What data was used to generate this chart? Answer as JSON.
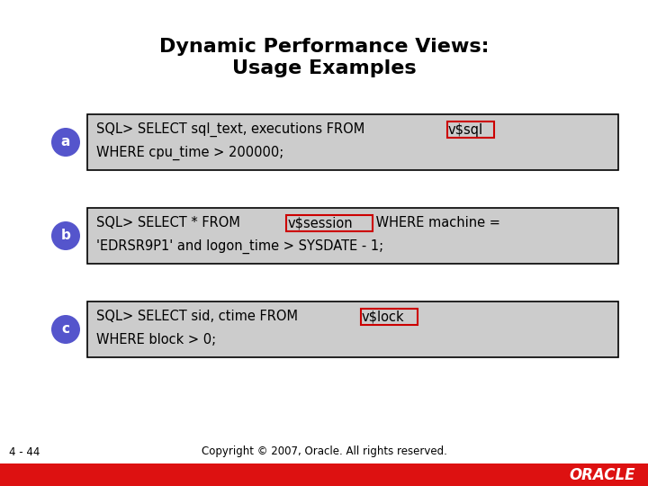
{
  "title_line1": "Dynamic Performance Views:",
  "title_line2": "Usage Examples",
  "title_fontsize": 16,
  "background_color": "#ffffff",
  "box_bg_color": "#cccccc",
  "box_border_color": "#000000",
  "highlight_border_color": "#cc0000",
  "highlight_bg_color": "#cccccc",
  "bullet_bg_color": "#5555cc",
  "bullet_text_color": "#ffffff",
  "bullets": [
    "a",
    "b",
    "c"
  ],
  "code_blocks": [
    {
      "line1_prefix": "SQL> SELECT sql_text, executions FROM ",
      "line1_highlight": "v$sql",
      "line1_suffix": "",
      "line2": "WHERE cpu_time > 200000;"
    },
    {
      "line1_prefix": "SQL> SELECT * FROM ",
      "line1_highlight": "v$session",
      "line1_suffix": " WHERE machine =",
      "line2": "'EDRSR9P1' and logon_time > SYSDATE - 1;"
    },
    {
      "line1_prefix": "SQL> SELECT sid, ctime FROM ",
      "line1_highlight": "v$lock",
      "line1_suffix": "",
      "line2": "WHERE block > 0;"
    }
  ],
  "footer_left": "4 - 44",
  "footer_center": "Copyright © 2007, Oracle. All rights reserved.",
  "oracle_bar_color": "#dd1111",
  "oracle_text_color": "#ffffff",
  "oracle_logo": "ORACLE",
  "code_fontsize": 10.5,
  "bullet_fontsize": 11,
  "footer_fontsize": 8.5
}
